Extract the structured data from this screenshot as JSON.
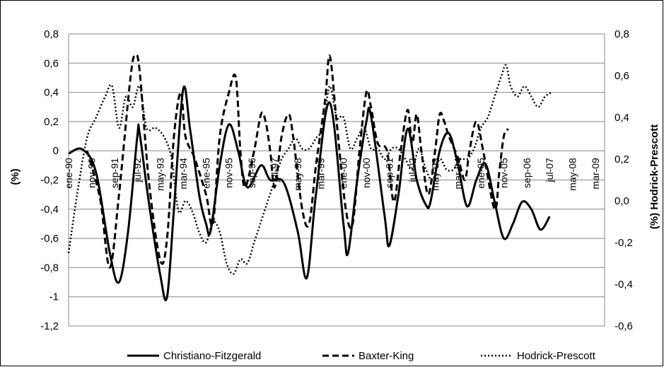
{
  "chart_data": {
    "type": "line",
    "ylabel": "(%)",
    "y2label": "(%) Hodrick-Prescott",
    "ylim": [
      -1.2,
      0.8
    ],
    "y2lim": [
      -0.6,
      0.8
    ],
    "yticks": [
      "0,8",
      "0,6",
      "0,4",
      "0,2",
      "0",
      "-0,2",
      "-0,4",
      "-0,6",
      "-0,8",
      "-1",
      "-1,2"
    ],
    "y2ticks": [
      "0,8",
      "0,6",
      "0,4",
      "0,2",
      "0,0",
      "-0,2",
      "-0,4",
      "-0,6"
    ],
    "xticks": [
      "ene-90",
      "nov-90",
      "sep-91",
      "jul-92",
      "may-93",
      "mar-94",
      "ene-95",
      "nov-95",
      "sep-96",
      "jul-97",
      "may-98",
      "mar-99",
      "ene-00",
      "nov-00",
      "sep-01",
      "jul-02",
      "may-03",
      "mar-04",
      "ene-05",
      "nov-05",
      "sep-06",
      "jul-07",
      "may-08",
      "mar-09"
    ],
    "x_start": "ene-90",
    "x_end": "jun-09",
    "grid": true,
    "legend_position": "bottom",
    "series": [
      {
        "name": "Christiano-Fitzgerald",
        "axis": "left",
        "style": "solid",
        "points": [
          [
            0,
            -0.02
          ],
          [
            6,
            0.01
          ],
          [
            12,
            -0.15
          ],
          [
            18,
            -0.7
          ],
          [
            22,
            -0.9
          ],
          [
            26,
            -0.55
          ],
          [
            30,
            0.1
          ],
          [
            31,
            0.12
          ],
          [
            35,
            -0.35
          ],
          [
            40,
            -0.85
          ],
          [
            43,
            -1.0
          ],
          [
            46,
            -0.4
          ],
          [
            50,
            0.42
          ],
          [
            53,
            0.15
          ],
          [
            57,
            -0.3
          ],
          [
            60,
            -0.5
          ],
          [
            62,
            -0.55
          ],
          [
            66,
            -0.1
          ],
          [
            70,
            0.18
          ],
          [
            74,
            0.0
          ],
          [
            78,
            -0.25
          ],
          [
            84,
            -0.1
          ],
          [
            88,
            -0.2
          ],
          [
            94,
            -0.22
          ],
          [
            100,
            -0.55
          ],
          [
            104,
            -0.87
          ],
          [
            108,
            -0.3
          ],
          [
            114,
            0.33
          ],
          [
            120,
            -0.5
          ],
          [
            122,
            -0.7
          ],
          [
            126,
            -0.2
          ],
          [
            130,
            0.2
          ],
          [
            132,
            0.24
          ],
          [
            138,
            -0.45
          ],
          [
            140,
            -0.65
          ],
          [
            144,
            -0.3
          ],
          [
            148,
            0.15
          ],
          [
            152,
            -0.2
          ],
          [
            156,
            -0.37
          ],
          [
            158,
            -0.35
          ],
          [
            162,
            0.0
          ],
          [
            166,
            0.12
          ],
          [
            170,
            -0.1
          ],
          [
            174,
            -0.38
          ],
          [
            178,
            -0.2
          ],
          [
            182,
            -0.09
          ],
          [
            186,
            -0.35
          ],
          [
            190,
            -0.6
          ],
          [
            194,
            -0.5
          ],
          [
            198,
            -0.35
          ],
          [
            202,
            -0.4
          ],
          [
            206,
            -0.54
          ],
          [
            210,
            -0.45
          ]
        ]
      },
      {
        "name": "Baxter-King",
        "axis": "left",
        "style": "dashed",
        "points": [
          [
            8,
            0.0
          ],
          [
            10,
            -0.1
          ],
          [
            14,
            -0.35
          ],
          [
            18,
            -0.8
          ],
          [
            22,
            -0.3
          ],
          [
            27,
            0.5
          ],
          [
            29,
            0.65
          ],
          [
            31,
            0.55
          ],
          [
            35,
            -0.2
          ],
          [
            40,
            -0.75
          ],
          [
            43,
            -0.6
          ],
          [
            46,
            0.1
          ],
          [
            49,
            0.4
          ],
          [
            51,
            0.1
          ],
          [
            55,
            -0.05
          ],
          [
            60,
            -0.3
          ],
          [
            63,
            -0.5
          ],
          [
            66,
            0.1
          ],
          [
            70,
            0.4
          ],
          [
            73,
            0.5
          ],
          [
            75,
            0.0
          ],
          [
            77,
            -0.25
          ],
          [
            81,
            0.0
          ],
          [
            84,
            0.25
          ],
          [
            86,
            0.2
          ],
          [
            88,
            0.0
          ],
          [
            90,
            -0.25
          ],
          [
            93,
            0.1
          ],
          [
            96,
            0.25
          ],
          [
            98,
            0.1
          ],
          [
            102,
            -0.4
          ],
          [
            105,
            -0.5
          ],
          [
            108,
            -0.1
          ],
          [
            112,
            0.35
          ],
          [
            114,
            0.65
          ],
          [
            117,
            0.2
          ],
          [
            121,
            -0.4
          ],
          [
            124,
            -0.5
          ],
          [
            127,
            0.0
          ],
          [
            130,
            0.4
          ],
          [
            132,
            0.3
          ],
          [
            135,
            0.05
          ],
          [
            139,
            0.0
          ],
          [
            142,
            -0.35
          ],
          [
            145,
            0.0
          ],
          [
            148,
            0.28
          ],
          [
            150,
            0.05
          ],
          [
            152,
            0.25
          ],
          [
            154,
            0.0
          ],
          [
            157,
            -0.3
          ],
          [
            160,
            0.0
          ],
          [
            162,
            0.25
          ],
          [
            164,
            0.2
          ],
          [
            166,
            0.1
          ],
          [
            170,
            -0.05
          ],
          [
            173,
            -0.2
          ],
          [
            175,
            0.0
          ],
          [
            178,
            0.2
          ],
          [
            181,
            0.0
          ],
          [
            186,
            -0.4
          ],
          [
            188,
            -0.15
          ],
          [
            190,
            0.1
          ],
          [
            192,
            0.15
          ]
        ]
      },
      {
        "name": "Hodrick-Prescott",
        "axis": "right",
        "style": "dotted",
        "points": [
          [
            0,
            -0.25
          ],
          [
            4,
            0.05
          ],
          [
            8,
            0.3
          ],
          [
            12,
            0.4
          ],
          [
            16,
            0.5
          ],
          [
            19,
            0.55
          ],
          [
            22,
            0.35
          ],
          [
            25,
            0.5
          ],
          [
            28,
            0.45
          ],
          [
            31,
            0.55
          ],
          [
            34,
            0.35
          ],
          [
            38,
            0.35
          ],
          [
            42,
            0.3
          ],
          [
            45,
            0.2
          ],
          [
            48,
            -0.05
          ],
          [
            51,
            0.0
          ],
          [
            54,
            -0.05
          ],
          [
            57,
            -0.15
          ],
          [
            60,
            -0.2
          ],
          [
            63,
            -0.1
          ],
          [
            66,
            -0.15
          ],
          [
            69,
            -0.3
          ],
          [
            72,
            -0.35
          ],
          [
            75,
            -0.28
          ],
          [
            78,
            -0.3
          ],
          [
            81,
            -0.2
          ],
          [
            84,
            -0.1
          ],
          [
            87,
            0.0
          ],
          [
            90,
            0.1
          ],
          [
            93,
            0.2
          ],
          [
            96,
            0.25
          ],
          [
            99,
            0.3
          ],
          [
            102,
            0.25
          ],
          [
            105,
            0.25
          ],
          [
            108,
            0.3
          ],
          [
            111,
            0.35
          ],
          [
            114,
            0.55
          ],
          [
            117,
            0.4
          ],
          [
            120,
            0.4
          ],
          [
            123,
            0.25
          ],
          [
            126,
            0.3
          ],
          [
            129,
            0.35
          ],
          [
            132,
            0.25
          ],
          [
            135,
            0.25
          ],
          [
            138,
            0.2
          ],
          [
            141,
            0.25
          ],
          [
            144,
            0.25
          ],
          [
            147,
            0.2
          ],
          [
            150,
            0.15
          ],
          [
            153,
            0.25
          ],
          [
            156,
            0.15
          ],
          [
            159,
            0.1
          ],
          [
            162,
            0.2
          ],
          [
            165,
            0.15
          ],
          [
            168,
            0.15
          ],
          [
            171,
            0.2
          ],
          [
            174,
            0.2
          ],
          [
            177,
            0.25
          ],
          [
            180,
            0.35
          ],
          [
            183,
            0.4
          ],
          [
            186,
            0.5
          ],
          [
            189,
            0.6
          ],
          [
            191,
            0.65
          ],
          [
            193,
            0.55
          ],
          [
            196,
            0.5
          ],
          [
            199,
            0.55
          ],
          [
            202,
            0.5
          ],
          [
            205,
            0.45
          ],
          [
            208,
            0.5
          ],
          [
            211,
            0.52
          ]
        ]
      }
    ]
  }
}
